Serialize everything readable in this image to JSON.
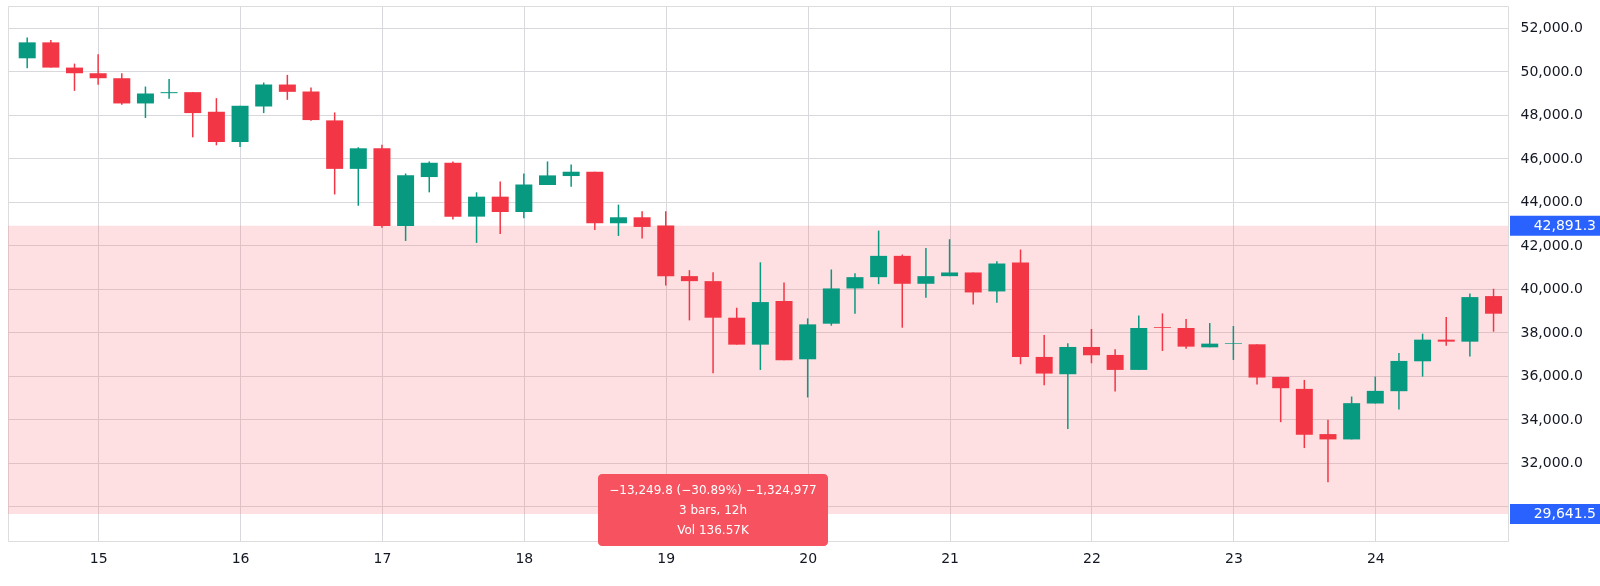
{
  "chart_data": {
    "type": "candlestick",
    "categories": [
      null,
      null,
      null,
      "15",
      null,
      null,
      null,
      null,
      null,
      "16",
      null,
      null,
      null,
      null,
      null,
      "17",
      null,
      null,
      null,
      null,
      null,
      "18",
      null,
      null,
      null,
      null,
      null,
      "19",
      null,
      null,
      null,
      null,
      null,
      "20",
      null,
      null,
      null,
      null,
      null,
      "21",
      null,
      null,
      null,
      null,
      null,
      "22",
      null,
      null,
      null,
      null,
      null,
      "23",
      null,
      null,
      null,
      null,
      null,
      "24",
      null,
      null,
      null,
      null,
      null
    ],
    "ohlc": [
      [
        50595,
        51557,
        50137,
        51328
      ],
      [
        51328,
        51435,
        50168,
        50168
      ],
      [
        50168,
        50351,
        49099,
        49908
      ],
      [
        49908,
        50778,
        49374,
        49679
      ],
      [
        49679,
        49908,
        48457,
        48519
      ],
      [
        48519,
        49297,
        47847,
        48977
      ],
      [
        48992,
        49648,
        48732,
        49038
      ],
      [
        49038,
        49038,
        46961,
        48076
      ],
      [
        48137,
        48763,
        46594,
        46747
      ],
      [
        46747,
        48412,
        46518,
        48412
      ],
      [
        48381,
        49480,
        48076,
        49389
      ],
      [
        49389,
        49832,
        48686,
        49053
      ],
      [
        49068,
        49251,
        47724,
        47755
      ],
      [
        47740,
        48106,
        44335,
        45511
      ],
      [
        45511,
        46503,
        43815,
        46457
      ],
      [
        46457,
        46625,
        42807,
        42884
      ],
      [
        42884,
        45297,
        42197,
        45220
      ],
      [
        45135,
        45853,
        44432,
        45792
      ],
      [
        45792,
        45853,
        43178,
        43315
      ],
      [
        43315,
        44432,
        42107,
        44233
      ],
      [
        44233,
        44936,
        42520,
        43529
      ],
      [
        43529,
        45303,
        43239,
        44798
      ],
      [
        44768,
        45853,
        44768,
        45211
      ],
      [
        45181,
        45716,
        44691,
        45380
      ],
      [
        45380,
        45380,
        42704,
        43010
      ],
      [
        43010,
        43866,
        42428,
        43285
      ],
      [
        43285,
        43560,
        42306,
        42841
      ],
      [
        42902,
        43560,
        40150,
        40579
      ],
      [
        40579,
        40854,
        38545,
        40349
      ],
      [
        40349,
        40762,
        36114,
        38667
      ],
      [
        38667,
        39126,
        37429,
        37429
      ],
      [
        37429,
        41213,
        36267,
        39386
      ],
      [
        39431,
        40288,
        36710,
        36710
      ],
      [
        36756,
        38637,
        35000,
        38361
      ],
      [
        38392,
        40884,
        38300,
        40013
      ],
      [
        40013,
        40716,
        38850,
        40532
      ],
      [
        40532,
        42673,
        40211,
        41511
      ],
      [
        41511,
        41572,
        38208,
        40227
      ],
      [
        40227,
        41878,
        39584,
        40578
      ],
      [
        40578,
        42276,
        40578,
        40747
      ],
      [
        40747,
        40747,
        39279,
        39829
      ],
      [
        39875,
        41266,
        39355,
        41159
      ],
      [
        41205,
        41802,
        36527,
        36863
      ],
      [
        36863,
        37872,
        35563,
        36099
      ],
      [
        36068,
        37490,
        33545,
        37322
      ],
      [
        37322,
        38147,
        36573,
        36940
      ],
      [
        36955,
        37215,
        35272,
        36267
      ],
      [
        36267,
        38774,
        36267,
        38193
      ],
      [
        38230,
        38866,
        37138,
        38193
      ],
      [
        38193,
        38606,
        37245,
        37337
      ],
      [
        37306,
        38422,
        37306,
        37475
      ],
      [
        37459,
        38285,
        36725,
        37490
      ],
      [
        37444,
        37444,
        35594,
        35915
      ],
      [
        35946,
        35946,
        33866,
        35426
      ],
      [
        35395,
        35808,
        32673,
        33285
      ],
      [
        33316,
        33973,
        31098,
        33071
      ],
      [
        33071,
        35043,
        33071,
        34738
      ],
      [
        34722,
        35961,
        34722,
        35303
      ],
      [
        35288,
        37047,
        34447,
        36680
      ],
      [
        36664,
        37933,
        35961,
        37658
      ],
      [
        37658,
        38698,
        37383,
        37566
      ],
      [
        37566,
        39783,
        36878,
        39615
      ],
      [
        39661,
        39997,
        38025,
        38851
      ]
    ],
    "colors": [
      "#089981",
      "#f23645",
      "#f23645",
      "#f23645",
      "#f23645",
      "#089981",
      "#089981",
      "#f23645",
      "#f23645",
      "#089981",
      "#089981",
      "#f23645",
      "#f23645",
      "#f23645",
      "#089981",
      "#f23645",
      "#089981",
      "#089981",
      "#f23645",
      "#089981",
      "#f23645",
      "#089981",
      "#089981",
      "#089981",
      "#f23645",
      "#089981",
      "#f23645",
      "#f23645",
      "#f23645",
      "#f23645",
      "#f23645",
      "#089981",
      "#f23645",
      "#089981",
      "#089981",
      "#089981",
      "#089981",
      "#f23645",
      "#089981",
      "#089981",
      "#f23645",
      "#089981",
      "#f23645",
      "#f23645",
      "#089981",
      "#f23645",
      "#f23645",
      "#089981",
      "#f23645",
      "#f23645",
      "#089981",
      "#089981",
      "#f23645",
      "#f23645",
      "#f23645",
      "#f23645",
      "#089981",
      "#089981",
      "#089981",
      "#089981",
      "#f23645",
      "#089981",
      "#f23645"
    ],
    "ylim": [
      28400,
      53000
    ],
    "yticks": [
      {
        "value": 30000,
        "label": null
      },
      {
        "value": 32000,
        "label": "32,000.0"
      },
      {
        "value": 34000,
        "label": "34,000.0"
      },
      {
        "value": 36000,
        "label": "36,000.0"
      },
      {
        "value": 38000,
        "label": "38,000.0"
      },
      {
        "value": 40000,
        "label": "40,000.0"
      },
      {
        "value": 42000,
        "label": "42,000.0"
      },
      {
        "value": 44000,
        "label": "44,000.0"
      },
      {
        "value": 46000,
        "label": "46,000.0"
      },
      {
        "value": 48000,
        "label": "48,000.0"
      },
      {
        "value": 50000,
        "label": "50,000.0"
      },
      {
        "value": 52000,
        "label": "52,000.0"
      }
    ],
    "grid": true,
    "bands": [
      {
        "axis": "y",
        "from": 29641.5,
        "to": 42891.3,
        "color": "#f7525f"
      }
    ],
    "annotations": [
      "−13,249.8 (−30.89%) −1,324,977",
      "3 bars, 12h",
      "Vol 136.57K",
      "42,891.3",
      "29,641.5"
    ]
  }
}
